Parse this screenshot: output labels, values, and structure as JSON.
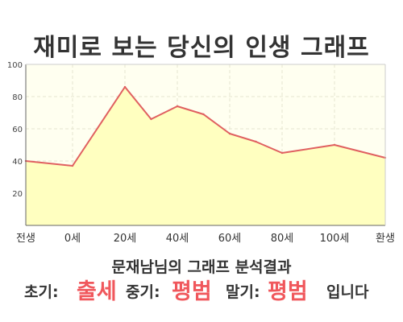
{
  "title": "재미로 보는 당신의 인생 그래프",
  "result": {
    "heading": "문재남님의 그래프 분석결과",
    "early_label": "초기:",
    "early_value": "출세",
    "mid_label": "중기:",
    "mid_value": "평범",
    "late_label": "말기:",
    "late_value": "평범",
    "closing": "입니다",
    "highlight_color": "#f0575c"
  },
  "chart_data": {
    "type": "area",
    "title": "재미로 보는 당신의 인생 그래프",
    "xlabel": "",
    "ylabel": "",
    "x_tick_labels": [
      "전생",
      "0세",
      "20세",
      "40세",
      "60세",
      "80세",
      "100세",
      "환생"
    ],
    "y_ticks": [
      20,
      40,
      60,
      80,
      100
    ],
    "ylim": [
      0,
      100
    ],
    "grid": true,
    "series": [
      {
        "points": [
          {
            "x": "전생",
            "y": 40
          },
          {
            "x": "0세",
            "y": 37
          },
          {
            "x": "20세",
            "y": 86
          },
          {
            "x": "30세",
            "y": 66
          },
          {
            "x": "40세",
            "y": 74
          },
          {
            "x": "50세",
            "y": 69
          },
          {
            "x": "60세",
            "y": 57
          },
          {
            "x": "70세",
            "y": 52
          },
          {
            "x": "80세",
            "y": 45
          },
          {
            "x": "100세",
            "y": 50
          },
          {
            "x": "환생",
            "y": 42
          }
        ]
      }
    ],
    "colors": {
      "line": "#e06060",
      "fill": "#ffffc0",
      "plot_background": "#fffff0",
      "grid": "#e6e6cf",
      "axis": "#666666"
    }
  }
}
